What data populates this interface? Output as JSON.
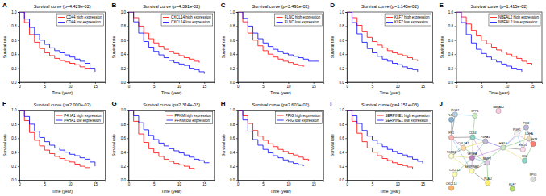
{
  "chart_data": [
    {
      "type": "line",
      "panel": "A",
      "title": "Survival curve (p=4.429e-02)",
      "x_label": "Time (year)",
      "y_label": "Survival rate",
      "x": [
        0,
        1,
        2,
        3,
        4,
        5,
        6,
        7,
        8,
        9,
        10,
        11,
        12,
        13,
        14,
        15,
        16
      ],
      "series": [
        {
          "name": "CD44 high expression",
          "color": "#ff0000",
          "line_style": "step",
          "values": [
            1,
            0.85,
            0.68,
            0.57,
            0.48,
            0.42,
            0.38,
            0.34,
            0.31,
            0.29,
            0.27,
            0.25,
            0.22,
            0.2,
            0.2,
            null,
            null
          ]
        },
        {
          "name": "CD44 low expression",
          "color": "#0000ff",
          "line_style": "step",
          "values": [
            1,
            0.9,
            0.78,
            0.68,
            0.6,
            0.54,
            0.49,
            0.45,
            0.42,
            0.39,
            0.36,
            0.33,
            0.3,
            0.27,
            0.2,
            0.15,
            null
          ]
        }
      ],
      "xlim": [
        0,
        17
      ],
      "ylim": [
        0,
        1
      ],
      "xticks": [
        0,
        5,
        10,
        15
      ],
      "yticks": [
        {
          "value": 0,
          "label": "0.0"
        },
        0.2,
        0.4,
        0.6,
        0.8,
        {
          "value": 1,
          "label": "1.0"
        }
      ],
      "legend": "top-right"
    },
    {
      "type": "line",
      "panel": "B",
      "title": "Survival curve (p=4.391e-02)",
      "x_label": "Time (year)",
      "y_label": "Survival rate",
      "x": [
        0,
        1,
        2,
        3,
        4,
        5,
        6,
        7,
        8,
        9,
        10,
        11,
        12,
        13,
        14,
        15,
        16
      ],
      "series": [
        {
          "name": "CXCL14 high expression",
          "color": "#ff0000",
          "line_style": "step",
          "values": [
            1,
            0.92,
            0.8,
            0.7,
            0.62,
            0.56,
            0.51,
            0.47,
            0.44,
            0.41,
            0.38,
            0.35,
            0.33,
            0.3,
            0.28,
            null,
            null
          ]
        },
        {
          "name": "CXCL14 low expression",
          "color": "#0000ff",
          "line_style": "step",
          "values": [
            1,
            0.86,
            0.7,
            0.58,
            0.5,
            0.44,
            0.39,
            0.35,
            0.31,
            0.28,
            0.26,
            0.24,
            0.2,
            0.18,
            0.15,
            0.12,
            null
          ]
        }
      ],
      "xlim": [
        0,
        17
      ],
      "ylim": [
        0,
        1
      ],
      "xticks": [
        0,
        5,
        10,
        15
      ],
      "yticks": [
        {
          "value": 0,
          "label": "0.0"
        },
        0.2,
        0.4,
        0.6,
        0.8,
        {
          "value": 1,
          "label": "1.0"
        }
      ],
      "legend": "top-right"
    },
    {
      "type": "line",
      "panel": "C",
      "title": "Survival curve (p=3.491e-02)",
      "x_label": "Time (year)",
      "y_label": "Survival rate",
      "x": [
        0,
        1,
        2,
        3,
        4,
        5,
        6,
        7,
        8,
        9,
        10,
        11,
        12,
        13,
        14,
        15,
        16
      ],
      "series": [
        {
          "name": "FLNC high expression",
          "color": "#ff0000",
          "line_style": "step",
          "values": [
            1,
            0.86,
            0.7,
            0.6,
            0.52,
            0.45,
            0.4,
            0.36,
            0.33,
            0.3,
            0.28,
            0.26,
            0.24,
            0.22,
            null,
            null,
            null
          ]
        },
        {
          "name": "FLNC low expression",
          "color": "#0000ff",
          "line_style": "step",
          "values": [
            1,
            0.91,
            0.8,
            0.7,
            0.62,
            0.56,
            0.51,
            0.47,
            0.44,
            0.41,
            0.39,
            0.37,
            0.35,
            0.33,
            0.3,
            0.3,
            0.3
          ]
        }
      ],
      "xlim": [
        0,
        17
      ],
      "ylim": [
        0,
        1
      ],
      "xticks": [
        0,
        5,
        10,
        15
      ],
      "yticks": [
        {
          "value": 0,
          "label": "0.0"
        },
        0.2,
        0.4,
        0.6,
        0.8,
        {
          "value": 1,
          "label": "1.0"
        }
      ],
      "legend": "top-right"
    },
    {
      "type": "line",
      "panel": "D",
      "title": "Survival curve (p=1.145e-02)",
      "x_label": "Time (year)",
      "y_label": "Survival rate",
      "x": [
        0,
        1,
        2,
        3,
        4,
        5,
        6,
        7,
        8,
        9,
        10,
        11,
        12,
        13,
        14,
        15,
        16
      ],
      "series": [
        {
          "name": "KLF7 high expression",
          "color": "#ff0000",
          "line_style": "step",
          "values": [
            1,
            0.92,
            0.81,
            0.72,
            0.64,
            0.58,
            0.53,
            0.49,
            0.45,
            0.42,
            0.4,
            0.38,
            0.35,
            0.32,
            0.3,
            null,
            null
          ]
        },
        {
          "name": "KLF7 low expression",
          "color": "#0000ff",
          "line_style": "step",
          "values": [
            1,
            0.85,
            0.69,
            0.57,
            0.48,
            0.42,
            0.37,
            0.33,
            0.3,
            0.27,
            0.25,
            0.22,
            0.2,
            0.18,
            0.15,
            null,
            null
          ]
        }
      ],
      "xlim": [
        0,
        17
      ],
      "ylim": [
        0,
        1
      ],
      "xticks": [
        0,
        5,
        10,
        15
      ],
      "yticks": [
        {
          "value": 0,
          "label": "0.0"
        },
        0.2,
        0.4,
        0.6,
        0.8,
        {
          "value": 1,
          "label": "1.0"
        }
      ],
      "legend": "top-right"
    },
    {
      "type": "line",
      "panel": "E",
      "title": "Survival curve (p=1.415e-02)",
      "x_label": "Time (year)",
      "y_label": "Survival rate",
      "x": [
        0,
        1,
        2,
        3,
        4,
        5,
        6,
        7,
        8,
        9,
        10,
        11,
        12,
        13,
        14,
        15,
        16
      ],
      "series": [
        {
          "name": "NBEAL2 high expression",
          "color": "#ff0000",
          "line_style": "step",
          "values": [
            1,
            0.93,
            0.83,
            0.74,
            0.66,
            0.6,
            0.55,
            0.5,
            0.46,
            0.43,
            0.4,
            0.37,
            0.34,
            0.3,
            0.27,
            0.25,
            null
          ]
        },
        {
          "name": "NBEAL2 low expression",
          "color": "#0000ff",
          "line_style": "step",
          "values": [
            1,
            0.85,
            0.68,
            0.56,
            0.47,
            0.41,
            0.36,
            0.32,
            0.29,
            0.26,
            0.23,
            0.2,
            0.18,
            0.15,
            null,
            null,
            null
          ]
        }
      ],
      "xlim": [
        0,
        17
      ],
      "ylim": [
        0,
        1
      ],
      "xticks": [
        0,
        5,
        10,
        15
      ],
      "yticks": [
        {
          "value": 0,
          "label": "0.0"
        },
        0.2,
        0.4,
        0.6,
        0.8,
        {
          "value": 1,
          "label": "1.0"
        }
      ],
      "legend": "top-right"
    },
    {
      "type": "line",
      "panel": "F",
      "title": "Survival curve (p=2.000e-02)",
      "x_label": "Time (year)",
      "y_label": "Survival rate",
      "x": [
        0,
        1,
        2,
        3,
        4,
        5,
        6,
        7,
        8,
        9,
        10,
        11,
        12,
        13,
        14,
        15,
        16
      ],
      "series": [
        {
          "name": "P4HA1 high expression",
          "color": "#ff0000",
          "line_style": "step",
          "values": [
            1,
            0.85,
            0.68,
            0.57,
            0.49,
            0.43,
            0.38,
            0.34,
            0.31,
            0.28,
            0.26,
            0.23,
            0.2,
            0.18,
            0.18,
            null,
            null
          ]
        },
        {
          "name": "P4HA1 low expression",
          "color": "#0000ff",
          "line_style": "step",
          "values": [
            1,
            0.91,
            0.8,
            0.7,
            0.61,
            0.55,
            0.5,
            0.46,
            0.43,
            0.4,
            0.37,
            0.35,
            0.32,
            0.3,
            0.26,
            0.2,
            null
          ]
        }
      ],
      "xlim": [
        0,
        17
      ],
      "ylim": [
        0,
        1
      ],
      "xticks": [
        0,
        5,
        10,
        15
      ],
      "yticks": [
        {
          "value": 0,
          "label": "0.0"
        },
        0.2,
        0.4,
        0.6,
        0.8,
        {
          "value": 1,
          "label": "1.0"
        }
      ],
      "legend": "top-right"
    },
    {
      "type": "line",
      "panel": "G",
      "title": "Survival curve (p=2.314e-03)",
      "x_label": "Time (year)",
      "y_label": "Survival rate",
      "x": [
        0,
        1,
        2,
        3,
        4,
        5,
        6,
        7,
        8,
        9,
        10,
        11,
        12,
        13,
        14,
        15,
        16
      ],
      "series": [
        {
          "name": "PFKM high expression",
          "color": "#ff0000",
          "line_style": "step",
          "values": [
            1,
            0.84,
            0.66,
            0.54,
            0.45,
            0.39,
            0.34,
            0.3,
            0.27,
            0.24,
            0.22,
            0.2,
            0.17,
            0.15,
            null,
            null,
            null
          ]
        },
        {
          "name": "PFKM low expression",
          "color": "#0000ff",
          "line_style": "step",
          "values": [
            1,
            0.92,
            0.82,
            0.72,
            0.64,
            0.58,
            0.53,
            0.49,
            0.45,
            0.42,
            0.39,
            0.36,
            0.33,
            0.3,
            0.28,
            0.25,
            0.25
          ]
        }
      ],
      "xlim": [
        0,
        17
      ],
      "ylim": [
        0,
        1
      ],
      "xticks": [
        0,
        5,
        10,
        15
      ],
      "yticks": [
        {
          "value": 0,
          "label": "0.0"
        },
        0.2,
        0.4,
        0.6,
        0.8,
        {
          "value": 1,
          "label": "1.0"
        }
      ],
      "legend": "top-right"
    },
    {
      "type": "line",
      "panel": "H",
      "title": "Survival curve (p=2.603e-02)",
      "x_label": "Time (year)",
      "y_label": "Survival rate",
      "x": [
        0,
        1,
        2,
        3,
        4,
        5,
        6,
        7,
        8,
        9,
        10,
        11,
        12,
        13,
        14,
        15,
        16
      ],
      "series": [
        {
          "name": "PPIG high expression",
          "color": "#ff0000",
          "line_style": "step",
          "values": [
            1,
            0.92,
            0.81,
            0.71,
            0.63,
            0.57,
            0.52,
            0.48,
            0.44,
            0.41,
            0.38,
            0.36,
            0.33,
            0.3,
            0.28,
            null,
            null
          ]
        },
        {
          "name": "PPIG low expression",
          "color": "#0000ff",
          "line_style": "step",
          "values": [
            1,
            0.86,
            0.7,
            0.58,
            0.5,
            0.44,
            0.39,
            0.35,
            0.32,
            0.29,
            0.26,
            0.24,
            0.22,
            0.2,
            null,
            null,
            null
          ]
        }
      ],
      "xlim": [
        0,
        17
      ],
      "ylim": [
        0,
        1
      ],
      "xticks": [
        0,
        5,
        10,
        15
      ],
      "yticks": [
        {
          "value": 0,
          "label": "0.0"
        },
        0.2,
        0.4,
        0.6,
        0.8,
        {
          "value": 1,
          "label": "1.0"
        }
      ],
      "legend": "top-right"
    },
    {
      "type": "line",
      "panel": "I",
      "title": "Survival curve (p=4.151e-03)",
      "x_label": "Time (year)",
      "y_label": "Survival rate",
      "x": [
        0,
        1,
        2,
        3,
        4,
        5,
        6,
        7,
        8,
        9,
        10,
        11,
        12,
        13,
        14,
        15,
        16
      ],
      "series": [
        {
          "name": "SERPINE1 high expression",
          "color": "#ff0000",
          "line_style": "step",
          "values": [
            1,
            0.84,
            0.67,
            0.55,
            0.46,
            0.4,
            0.35,
            0.31,
            0.28,
            0.25,
            0.23,
            0.21,
            0.19,
            0.16,
            null,
            null,
            null
          ]
        },
        {
          "name": "SERPINE1 low expression",
          "color": "#0000ff",
          "line_style": "step",
          "values": [
            1,
            0.92,
            0.81,
            0.71,
            0.63,
            0.57,
            0.52,
            0.48,
            0.44,
            0.41,
            0.38,
            0.36,
            0.33,
            0.3,
            0.27,
            0.24,
            null
          ]
        }
      ],
      "xlim": [
        0,
        17
      ],
      "ylim": [
        0,
        1
      ],
      "xticks": [
        0,
        5,
        10,
        15
      ],
      "yticks": [
        {
          "value": 0,
          "label": "0.0"
        },
        0.2,
        0.4,
        0.6,
        0.8,
        {
          "value": 1,
          "label": "1.0"
        }
      ],
      "legend": "top-right"
    }
  ],
  "network": {
    "panel": "J",
    "nodes": [
      "CD44",
      "SERPINE1",
      "P4HA1",
      "PFKM",
      "FLNC",
      "CXCL14",
      "KLF7",
      "NBEAL2",
      "PPIG",
      "VEGFA",
      "HIF1A",
      "PLAU",
      "FN1",
      "ITGB1",
      "SPP1",
      "MMP2",
      "COL1A1",
      "TGFB1",
      "LDHA",
      "ENO1",
      "PGK1",
      "HK2",
      "CXCL12",
      "PKM"
    ],
    "edges": [
      [
        0,
        14
      ],
      [
        0,
        12
      ],
      [
        0,
        15
      ],
      [
        0,
        9
      ],
      [
        0,
        10
      ],
      [
        0,
        17
      ],
      [
        1,
        11
      ],
      [
        1,
        9
      ],
      [
        1,
        17
      ],
      [
        1,
        12
      ],
      [
        1,
        10
      ],
      [
        1,
        15
      ],
      [
        2,
        10
      ],
      [
        2,
        16
      ],
      [
        2,
        9
      ],
      [
        3,
        21
      ],
      [
        3,
        23
      ],
      [
        3,
        20
      ],
      [
        3,
        18
      ],
      [
        4,
        13
      ],
      [
        4,
        12
      ],
      [
        5,
        22
      ],
      [
        9,
        10
      ],
      [
        9,
        17
      ],
      [
        9,
        15
      ],
      [
        10,
        18
      ],
      [
        10,
        19
      ],
      [
        10,
        20
      ],
      [
        10,
        21
      ],
      [
        10,
        23
      ],
      [
        11,
        15
      ],
      [
        12,
        13
      ],
      [
        12,
        16
      ],
      [
        12,
        17
      ],
      [
        13,
        14
      ],
      [
        15,
        16
      ],
      [
        16,
        17
      ],
      [
        18,
        19
      ],
      [
        19,
        23
      ],
      [
        20,
        19
      ],
      [
        22,
        9
      ]
    ]
  }
}
